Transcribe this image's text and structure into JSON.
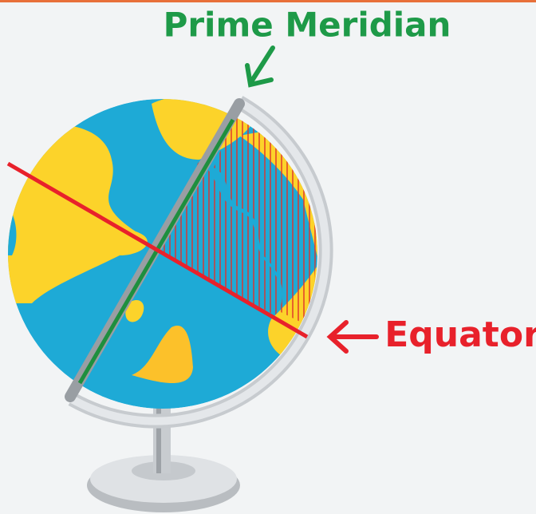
{
  "labels": {
    "prime_meridian": "Prime Meridian",
    "equator": "Equator"
  }
}
